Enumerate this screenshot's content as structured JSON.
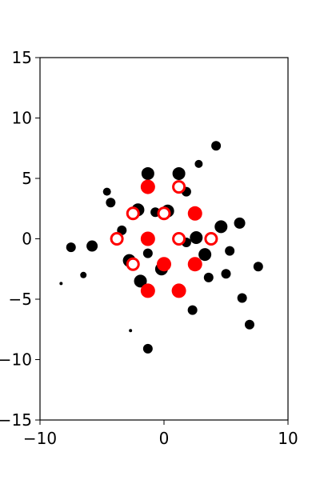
{
  "chart_data": {
    "type": "scatter",
    "title": "",
    "xlabel": "",
    "ylabel": "",
    "xlim": [
      -10,
      10
    ],
    "ylim": [
      -15,
      15
    ],
    "grid": false,
    "legend": "none",
    "xticks": [
      {
        "value": -10,
        "label": "−10"
      },
      {
        "value": 0,
        "label": "0"
      },
      {
        "value": 10,
        "label": "10"
      }
    ],
    "yticks": [
      {
        "value": 15,
        "label": "15"
      },
      {
        "value": 10,
        "label": "10"
      },
      {
        "value": 5,
        "label": "5"
      },
      {
        "value": 0,
        "label": "0"
      },
      {
        "value": -5,
        "label": "−5"
      },
      {
        "value": -10,
        "label": "−10"
      },
      {
        "value": -15,
        "label": "−15"
      }
    ],
    "series": [
      {
        "style": "filled",
        "color": "#000000",
        "points": [
          {
            "x": 4.2,
            "y": 7.7,
            "r": 6
          },
          {
            "x": 2.8,
            "y": 6.2,
            "r": 5
          },
          {
            "x": -1.3,
            "y": 5.4,
            "r": 8
          },
          {
            "x": 1.2,
            "y": 5.4,
            "r": 8
          },
          {
            "x": -4.6,
            "y": 3.9,
            "r": 5
          },
          {
            "x": 1.8,
            "y": 3.9,
            "r": 6
          },
          {
            "x": -4.3,
            "y": 3.0,
            "r": 6
          },
          {
            "x": -2.1,
            "y": 2.4,
            "r": 8
          },
          {
            "x": -0.7,
            "y": 2.2,
            "r": 6
          },
          {
            "x": 0.3,
            "y": 2.3,
            "r": 8
          },
          {
            "x": -3.4,
            "y": 0.7,
            "r": 6
          },
          {
            "x": 6.1,
            "y": 1.3,
            "r": 7
          },
          {
            "x": 4.6,
            "y": 1.0,
            "r": 8
          },
          {
            "x": 2.6,
            "y": 0.1,
            "r": 8
          },
          {
            "x": 1.8,
            "y": -0.3,
            "r": 6
          },
          {
            "x": -7.5,
            "y": -0.7,
            "r": 6
          },
          {
            "x": -5.8,
            "y": -0.6,
            "r": 7
          },
          {
            "x": 5.3,
            "y": -1.0,
            "r": 6
          },
          {
            "x": 7.6,
            "y": -2.3,
            "r": 6
          },
          {
            "x": -1.3,
            "y": -1.2,
            "r": 6
          },
          {
            "x": 3.3,
            "y": -1.3,
            "r": 8
          },
          {
            "x": -2.8,
            "y": -1.8,
            "r": 8
          },
          {
            "x": -0.2,
            "y": -2.5,
            "r": 8
          },
          {
            "x": 5.0,
            "y": -2.9,
            "r": 6
          },
          {
            "x": -6.5,
            "y": -3.0,
            "r": 4
          },
          {
            "x": 3.6,
            "y": -3.2,
            "r": 6
          },
          {
            "x": -1.9,
            "y": -3.5,
            "r": 8
          },
          {
            "x": -8.3,
            "y": -3.7,
            "r": 2
          },
          {
            "x": 6.3,
            "y": -4.9,
            "r": 6
          },
          {
            "x": 2.3,
            "y": -5.9,
            "r": 6
          },
          {
            "x": 6.9,
            "y": -7.1,
            "r": 6
          },
          {
            "x": -2.7,
            "y": -7.6,
            "r": 2
          },
          {
            "x": -1.3,
            "y": -9.1,
            "r": 6
          }
        ]
      },
      {
        "style": "filled",
        "color": "#ff0000",
        "points": [
          {
            "x": -1.3,
            "y": 4.3,
            "r": 9
          },
          {
            "x": 2.5,
            "y": 2.1,
            "r": 9
          },
          {
            "x": -1.3,
            "y": 0.0,
            "r": 9
          },
          {
            "x": 0.0,
            "y": -2.1,
            "r": 9
          },
          {
            "x": 2.5,
            "y": -2.1,
            "r": 9
          },
          {
            "x": -1.3,
            "y": -4.3,
            "r": 9
          },
          {
            "x": 1.2,
            "y": -4.3,
            "r": 9
          }
        ]
      },
      {
        "style": "hollow",
        "color": "#ff0000",
        "points": [
          {
            "x": 1.2,
            "y": 4.3,
            "r": 7
          },
          {
            "x": -2.5,
            "y": 2.1,
            "r": 7
          },
          {
            "x": 0.0,
            "y": 2.1,
            "r": 7
          },
          {
            "x": -3.8,
            "y": 0.0,
            "r": 7
          },
          {
            "x": 1.2,
            "y": 0.0,
            "r": 7
          },
          {
            "x": 3.8,
            "y": 0.0,
            "r": 7
          },
          {
            "x": -2.5,
            "y": -2.1,
            "r": 7
          }
        ]
      }
    ]
  }
}
